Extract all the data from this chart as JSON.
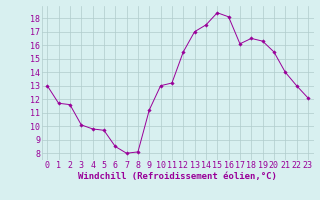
{
  "x": [
    0,
    1,
    2,
    3,
    4,
    5,
    6,
    7,
    8,
    9,
    10,
    11,
    12,
    13,
    14,
    15,
    16,
    17,
    18,
    19,
    20,
    21,
    22,
    23
  ],
  "y": [
    13.0,
    11.7,
    11.6,
    10.1,
    9.8,
    9.7,
    8.5,
    8.0,
    8.1,
    11.2,
    13.0,
    13.2,
    15.5,
    17.0,
    17.5,
    18.4,
    18.1,
    16.1,
    16.5,
    16.3,
    15.5,
    14.0,
    13.0,
    12.1
  ],
  "line_color": "#990099",
  "marker": "D",
  "marker_size": 1.8,
  "bg_color": "#d8f0f0",
  "grid_color": "#b0cccc",
  "xlabel": "Windchill (Refroidissement éolien,°C)",
  "xlabel_color": "#990099",
  "xlabel_fontsize": 6.5,
  "tick_color": "#990099",
  "tick_fontsize": 6.0,
  "yticks": [
    8,
    9,
    10,
    11,
    12,
    13,
    14,
    15,
    16,
    17,
    18
  ],
  "ylim": [
    7.5,
    18.9
  ],
  "xlim": [
    -0.5,
    23.5
  ],
  "xtick_labels": [
    "0",
    "1",
    "2",
    "3",
    "4",
    "5",
    "6",
    "7",
    "8",
    "9",
    "10",
    "11",
    "12",
    "13",
    "14",
    "15",
    "16",
    "17",
    "18",
    "19",
    "20",
    "21",
    "22",
    "23"
  ]
}
